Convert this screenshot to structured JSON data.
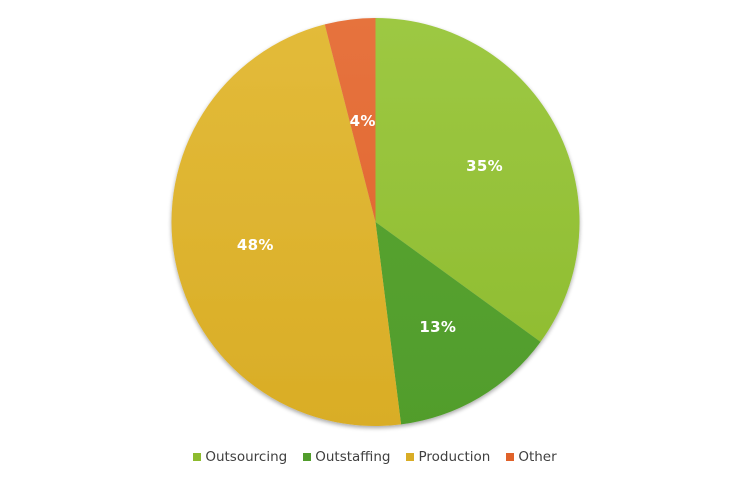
{
  "chart_data": {
    "type": "pie",
    "title": "",
    "categories": [
      "Outsourcing",
      "Outstaffing",
      "Production",
      "Other"
    ],
    "values": [
      35,
      13,
      48,
      4
    ],
    "labels": [
      "35%",
      "13%",
      "48%",
      "4%"
    ],
    "colors": [
      "#8dbb2e",
      "#519d2c",
      "#d9ad26",
      "#e0622a"
    ],
    "gradient_light": [
      "#9dc843",
      "#5aa633",
      "#e3bb3a",
      "#e6733e"
    ],
    "start_angle_deg": 0,
    "direction": "clockwise",
    "legend_position": "bottom"
  },
  "legend": {
    "items": [
      {
        "label": "Outsourcing",
        "color": "#8dbb2e"
      },
      {
        "label": "Outstaffing",
        "color": "#519d2c"
      },
      {
        "label": "Production",
        "color": "#d9ad26"
      },
      {
        "label": "Other",
        "color": "#e0622a"
      }
    ]
  }
}
